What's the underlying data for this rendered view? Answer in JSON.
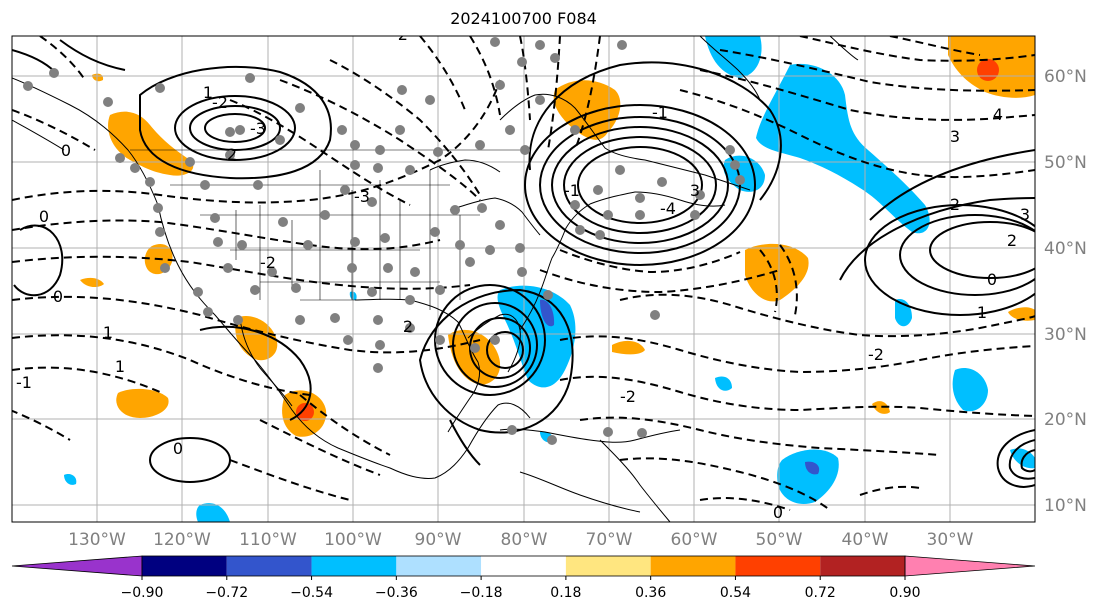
{
  "title": "2024100700 F084",
  "latitude_labels": [
    "60°N",
    "50°N",
    "40°N",
    "30°N",
    "20°N",
    "10°N"
  ],
  "longitude_labels": [
    "130°W",
    "120°W",
    "110°W",
    "100°W",
    "90°W",
    "80°W",
    "70°W",
    "60°W",
    "50°W",
    "40°W",
    "30°W"
  ],
  "colorbar": {
    "tick_labels": [
      "−0.90",
      "−0.72",
      "−0.54",
      "−0.36",
      "−0.18",
      "0.18",
      "0.36",
      "0.54",
      "0.72",
      "0.90"
    ],
    "colors": [
      "#9933cc",
      "#000080",
      "#3355cc",
      "#00bfff",
      "#aee0ff",
      "#ffffff",
      "#ffe680",
      "#ffa500",
      "#ff4000",
      "#b22222",
      "#ff80b0"
    ]
  },
  "contour_labels": [
    "1",
    "-3",
    "-2",
    "-3",
    "0",
    "1",
    "-1",
    "3",
    "-2",
    "4",
    "3",
    "1",
    "2",
    "2",
    "3",
    "0",
    "-2",
    "-2",
    "-2",
    "1",
    "0",
    "-1",
    "-1",
    "-4",
    "0",
    "2",
    "0",
    "2",
    "0"
  ],
  "colors": {
    "grid": "#b0b0b0",
    "coast": "#000000",
    "contour": "#000000",
    "axis_label": "#808080"
  }
}
